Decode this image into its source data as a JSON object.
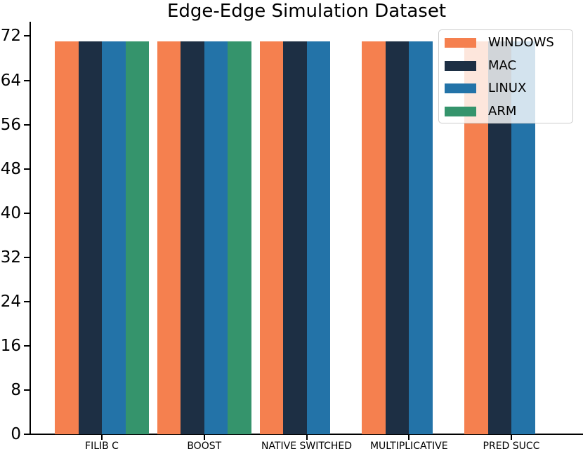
{
  "chart_data": {
    "type": "bar",
    "title": "Edge-Edge Simulation Dataset",
    "categories": [
      "FILIB C",
      "BOOST",
      "NATIVE SWITCHED",
      "MULTIPLICATIVE",
      "PRED SUCC"
    ],
    "series": [
      {
        "name": "WINDOWS",
        "color": "#f5804f",
        "values": [
          71,
          71,
          71,
          71,
          71
        ]
      },
      {
        "name": "MAC",
        "color": "#1d2f44",
        "values": [
          71,
          71,
          71,
          71,
          71
        ]
      },
      {
        "name": "LINUX",
        "color": "#2373a8",
        "values": [
          71,
          71,
          71,
          71,
          71
        ]
      },
      {
        "name": "ARM",
        "color": "#35946c",
        "values": [
          71,
          71,
          null,
          null,
          null
        ]
      }
    ],
    "xlabel": "",
    "ylabel": "",
    "ylim": [
      0,
      74.6
    ],
    "yticks": [
      0,
      8,
      16,
      24,
      32,
      40,
      48,
      56,
      64,
      72
    ],
    "grid": false,
    "legend": {
      "position": "upper right",
      "entries": [
        "WINDOWS",
        "MAC",
        "LINUX",
        "ARM"
      ],
      "background": "rgba(255,255,255,0.8)",
      "border_color": "#cccccc"
    },
    "axis_color": "#000000",
    "text_color": "#000000",
    "background_color": "#ffffff"
  }
}
